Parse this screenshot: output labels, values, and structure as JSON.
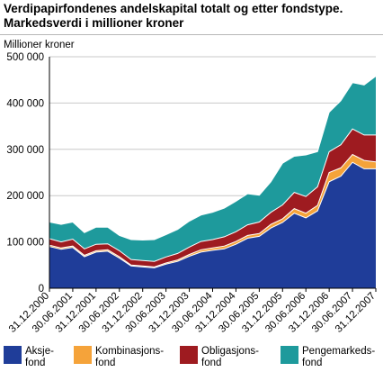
{
  "title_line1": "Verdipapirfondenes andelskapital totalt og etter fondstype.",
  "title_line2": "Markedsverdi i millioner kroner",
  "unit_label": "Millioner kroner",
  "chart_data": {
    "type": "area",
    "stacked": true,
    "title": "Verdipapirfondenes andelskapital totalt og etter fondstype. Markedsverdi i millioner kroner",
    "ylabel": "Millioner kroner",
    "ylim": [
      0,
      500000
    ],
    "yticks": [
      0,
      100000,
      200000,
      300000,
      400000,
      500000
    ],
    "ytick_labels": [
      "0",
      "100 000",
      "200 000",
      "300 000",
      "400 000",
      "500 000"
    ],
    "grid": true,
    "legend_position": "bottom",
    "x_tick_labels": [
      "31.12.2000",
      "30.06.2001",
      "31.12.2001",
      "30.06.2002",
      "31.12.2002",
      "30.06.2003",
      "31.12.2003",
      "30.06.2004",
      "31.12.2004",
      "30.06.2005",
      "31.12.2005",
      "30.06.2006",
      "31.12.2006",
      "30.06.2007",
      "31.12.2007"
    ],
    "x": [
      "31.12.2000",
      "31.03.2001",
      "30.06.2001",
      "30.09.2001",
      "31.12.2001",
      "31.03.2002",
      "30.06.2002",
      "30.09.2002",
      "31.12.2002",
      "31.03.2003",
      "30.06.2003",
      "30.09.2003",
      "31.12.2003",
      "31.03.2004",
      "30.06.2004",
      "30.09.2004",
      "31.12.2004",
      "31.03.2005",
      "30.06.2005",
      "30.09.2005",
      "31.12.2005",
      "31.03.2006",
      "30.06.2006",
      "30.09.2006",
      "31.12.2006",
      "31.03.2007",
      "30.06.2007",
      "30.09.2007",
      "31.12.2007"
    ],
    "series": [
      {
        "name": "Aksje-\nfond",
        "color": "#1f3d99",
        "values": [
          90000,
          84000,
          88000,
          68000,
          78000,
          80000,
          65000,
          48000,
          46000,
          44000,
          52000,
          58000,
          69000,
          78000,
          82000,
          85000,
          95000,
          108000,
          112000,
          130000,
          142000,
          162000,
          152000,
          167000,
          230000,
          242000,
          272000,
          258000,
          258000
        ]
      },
      {
        "name": "Kombinasjons-\nfond",
        "color": "#f5a33a",
        "values": [
          3000,
          3000,
          3000,
          3000,
          3000,
          3000,
          3000,
          2000,
          2000,
          2000,
          2500,
          3000,
          4000,
          5000,
          5000,
          6000,
          6000,
          6000,
          6000,
          8000,
          8000,
          10000,
          10000,
          12000,
          20000,
          18000,
          17000,
          18000,
          15000
        ]
      },
      {
        "name": "Obligasjons-\nfond",
        "color": "#9e1b20",
        "values": [
          14000,
          13000,
          15000,
          14000,
          14000,
          13000,
          13000,
          12000,
          12000,
          12000,
          13000,
          14000,
          16000,
          18000,
          18000,
          20000,
          21000,
          23000,
          25000,
          26000,
          30000,
          35000,
          36000,
          40000,
          45000,
          50000,
          55000,
          55000,
          58000
        ]
      },
      {
        "name": "Pengemarkeds-\nfond",
        "color": "#1e9a9c",
        "values": [
          36000,
          38000,
          37000,
          35000,
          37000,
          36000,
          33000,
          43000,
          44000,
          47000,
          48000,
          52000,
          56000,
          57000,
          59000,
          62000,
          66000,
          67000,
          58000,
          66000,
          90000,
          78000,
          90000,
          76000,
          85000,
          95000,
          100000,
          108000,
          127000
        ]
      }
    ]
  }
}
